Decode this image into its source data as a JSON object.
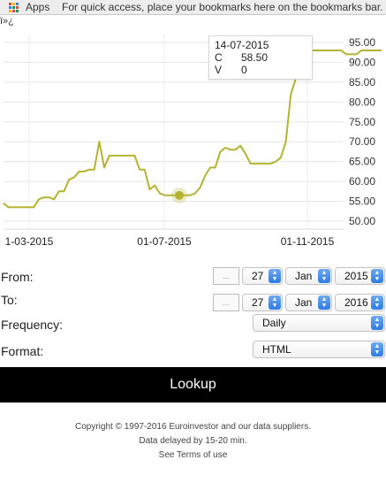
{
  "browser": {
    "bookmarks_bar": {
      "apps_label": "Apps",
      "hint": "For quick access, place your bookmarks here on the bookmarks bar."
    }
  },
  "page": {
    "stray_text": "ï»¿"
  },
  "chart_data": {
    "type": "line",
    "title": "",
    "xlabel": "",
    "ylabel": "",
    "x_tick_labels": [
      "1-03-2015",
      "01-07-2015",
      "01-11-2015"
    ],
    "y_tick_labels": [
      "50.00",
      "55.00",
      "60.00",
      "65.00",
      "70.00",
      "75.00",
      "80.00",
      "85.00",
      "90.00",
      "95.00"
    ],
    "ylim": [
      48,
      97
    ],
    "y_axis_position": "right",
    "grid": true,
    "line_color": "#b5b332",
    "series": [
      {
        "values": [
          54.5,
          53.5,
          53.5,
          53.5,
          53.5,
          53.5,
          53.5,
          55.5,
          56.0,
          56.0,
          55.5,
          57.5,
          57.5,
          60.5,
          61.0,
          62.5,
          62.5,
          63.0,
          63.0,
          70.0,
          63.5,
          66.5,
          66.5,
          66.5,
          66.5,
          66.5,
          66.5,
          63.0,
          63.0,
          58.0,
          59.0,
          57.0,
          56.5,
          56.5,
          56.5,
          56.5,
          56.5,
          56.5,
          57.0,
          58.5,
          61.5,
          63.5,
          63.5,
          67.5,
          68.5,
          68.0,
          68.0,
          69.0,
          67.0,
          64.5,
          64.5,
          64.5,
          64.5,
          64.5,
          65.0,
          66.0,
          70.0,
          82.0,
          86.0,
          90.0,
          91.5,
          93.0,
          93.0,
          93.0,
          93.0,
          93.0,
          93.0,
          93.0,
          92.0,
          92.0,
          92.0,
          93.0,
          93.0,
          93.0,
          93.0,
          93.0
        ]
      }
    ],
    "tooltip": {
      "date": "14-07-2015",
      "c_label": "C",
      "c_value": "58.50",
      "v_label": "V",
      "v_value": "0"
    }
  },
  "form": {
    "from": {
      "label": "From:",
      "calendar": "…",
      "day": "27",
      "month": "Jan",
      "year": "2015"
    },
    "to": {
      "label": "To:",
      "calendar": "…",
      "day": "27",
      "month": "Jan",
      "year": "2016"
    },
    "frequency": {
      "label": "Frequency:",
      "value": "Daily"
    },
    "format": {
      "label": "Format:",
      "value": "HTML"
    },
    "lookup_label": "Lookup"
  },
  "footer": {
    "copyright": "Copyright © 1997-2016 Euroinvestor and our data suppliers.",
    "delay": "Data delayed by 15-20 min.",
    "terms": "See Terms of use"
  },
  "icons": {
    "apps": "apps-grid-icon",
    "select_arrows": "chevron-up-down-icon",
    "calendar": "broken-image-icon"
  }
}
